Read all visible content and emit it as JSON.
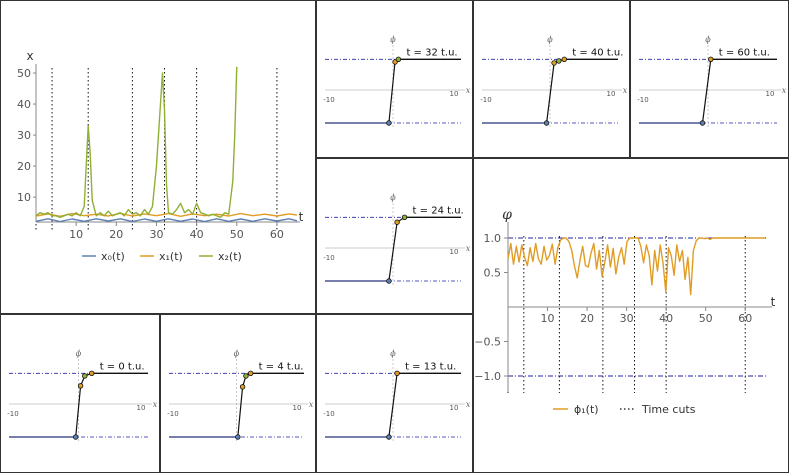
{
  "chart_data": [
    {
      "type": "line",
      "panel": "position-traces",
      "ylabel": "x",
      "xlabel": "t",
      "xlim": [
        0,
        65
      ],
      "ylim": [
        0,
        55
      ],
      "xticks": [
        "10",
        "20",
        "30",
        "40",
        "50",
        "60"
      ],
      "yticks": [
        "10",
        "20",
        "30",
        "40",
        "50"
      ],
      "time_cuts": [
        0,
        4,
        13,
        24,
        32,
        40,
        60
      ],
      "legend_position": "bottom",
      "series": [
        {
          "name": "x₀(t)",
          "color": "#5e81b5",
          "x": [
            0,
            3,
            6,
            9,
            12,
            15,
            18,
            21,
            24,
            27,
            30,
            33,
            36,
            39,
            42,
            45,
            48,
            51,
            54,
            57,
            60,
            63,
            65
          ],
          "y": [
            0.5,
            -0.5,
            0.6,
            -0.4,
            0.5,
            -0.5,
            0.4,
            -0.5,
            0.6,
            -0.4,
            0.5,
            -0.5,
            0.5,
            -0.4,
            0.6,
            -0.5,
            0.5,
            -0.4,
            0.5,
            -0.5,
            0.4,
            -0.5,
            0.3
          ]
        },
        {
          "name": "x₁(t)",
          "color": "#e19c24",
          "x": [
            0,
            3,
            6,
            9,
            12,
            15,
            18,
            21,
            24,
            27,
            30,
            33,
            36,
            39,
            42,
            45,
            48,
            51,
            54,
            57,
            60,
            63,
            65
          ],
          "y": [
            2.5,
            3.2,
            2.4,
            3.3,
            2.6,
            3.1,
            2.5,
            3.4,
            2.5,
            3.2,
            2.6,
            3.3,
            2.4,
            3.2,
            2.6,
            3.1,
            2.5,
            3.3,
            2.6,
            3.1,
            2.5,
            3.2,
            2.8
          ]
        },
        {
          "name": "x₂(t)",
          "color": "#8fb032",
          "x": [
            0,
            1,
            2,
            3,
            4,
            5,
            6,
            7,
            8,
            9,
            10,
            11,
            12,
            12.5,
            13,
            13.5,
            14,
            15,
            16,
            17,
            18,
            19,
            20,
            21,
            22,
            23,
            24,
            25,
            26,
            27,
            28,
            29,
            30,
            31,
            31.5,
            32,
            32.5,
            33,
            34,
            35,
            36,
            37,
            38,
            39,
            40,
            41,
            42,
            43,
            44,
            45,
            46,
            47,
            48,
            49,
            49.5,
            50
          ],
          "y": [
            4,
            5,
            4.5,
            5,
            4,
            4,
            3.5,
            4,
            4.5,
            4,
            5,
            4,
            7,
            20,
            33,
            24,
            9,
            4,
            5,
            4,
            5.5,
            4,
            4.5,
            5,
            4,
            6,
            4.5,
            5,
            4,
            6,
            4.5,
            7,
            20,
            40,
            50,
            38,
            14,
            5,
            4.5,
            6,
            8,
            5,
            6,
            4.5,
            8,
            5,
            4.5,
            4,
            4.5,
            4,
            3.5,
            5,
            4.5,
            15,
            30,
            52
          ]
        }
      ]
    },
    {
      "type": "line",
      "panel": "phi-trace",
      "ylabel": "φ",
      "xlabel": "t",
      "xlim": [
        0,
        65
      ],
      "ylim": [
        -1.1,
        1.1
      ],
      "xticks": [
        "10",
        "20",
        "30",
        "40",
        "50",
        "60"
      ],
      "yticks": [
        "1.0",
        "0.5",
        "−0.5",
        "−1.0"
      ],
      "reference_lines": [
        1.0,
        -1.0
      ],
      "time_cuts": [
        0,
        4,
        13,
        24,
        32,
        40,
        60
      ],
      "legend_position": "bottom",
      "legend": {
        "series": "ϕ₁(t)",
        "cuts": "Time cuts"
      },
      "series": [
        {
          "name": "ϕ₁(t)",
          "color": "#e19c24",
          "x": [
            0,
            0.7,
            1.4,
            2.1,
            2.8,
            3.5,
            4.2,
            4.9,
            5.6,
            6.3,
            7,
            7.7,
            8.4,
            9.1,
            9.8,
            10.5,
            11.2,
            11.9,
            12.6,
            13.3,
            14,
            14.7,
            15.4,
            16.1,
            16.8,
            17.5,
            18.2,
            18.9,
            19.6,
            20.3,
            21,
            21.7,
            22.4,
            23.1,
            23.8,
            24.5,
            25.2,
            25.9,
            26.6,
            27.3,
            28,
            28.7,
            29.4,
            30.1,
            30.8,
            31.5,
            32.2,
            32.9,
            33.6,
            34.3,
            35,
            35.7,
            36.4,
            37.1,
            37.8,
            38.5,
            39.2,
            39.9,
            40.6,
            41.3,
            42,
            42.7,
            43.4,
            44.1,
            44.8,
            45.5,
            46.2,
            46.9,
            47.6,
            48.3,
            49,
            49.7,
            50.4,
            51.1,
            51.8,
            52.5,
            53.2,
            53.9,
            54.6,
            55.3,
            56,
            56.7,
            57.4,
            58.1,
            58.8,
            59.5,
            60.2,
            60.9,
            61.6,
            62.3,
            63,
            63.7,
            64.4,
            65
          ],
          "y": [
            0.7,
            0.92,
            0.62,
            0.88,
            0.65,
            0.9,
            0.72,
            0.6,
            0.86,
            0.66,
            0.92,
            0.7,
            0.62,
            0.88,
            0.68,
            0.75,
            0.91,
            0.62,
            0.86,
            0.97,
            1.0,
            1.0,
            0.95,
            0.82,
            0.6,
            0.42,
            0.68,
            0.88,
            0.6,
            0.58,
            0.78,
            0.92,
            0.55,
            0.82,
            0.44,
            0.66,
            0.9,
            0.58,
            0.85,
            0.48,
            0.72,
            0.86,
            0.62,
            0.95,
            1.0,
            1.0,
            1.0,
            1.0,
            0.88,
            0.64,
            0.9,
            0.74,
            0.32,
            0.82,
            0.52,
            0.9,
            0.64,
            0.22,
            0.86,
            0.74,
            0.46,
            0.9,
            0.66,
            0.82,
            0.4,
            0.72,
            0.18,
            0.82,
            0.96,
            1.0,
            1.0,
            0.99,
            1.0,
            0.98,
            1.0,
            1.0,
            1.0,
            1.0,
            1.0,
            1.0,
            1.0,
            1.0,
            1.0,
            1.0,
            1.0,
            1.0,
            1.0,
            1.0,
            1.0,
            1.0,
            1.0,
            1.0,
            1.0,
            1.0
          ]
        }
      ]
    },
    {
      "type": "line",
      "panel": "snapshots",
      "xlabel": "x",
      "ylabel": "ϕ",
      "xlim": [
        -10,
        10
      ],
      "ylim": [
        -1.1,
        1.1
      ],
      "tick_left": "-10",
      "tick_right": "10",
      "snapshots": [
        {
          "label": "t = 0 t.u.",
          "points": [
            [
              -10,
              -1
            ],
            [
              -0.4,
              -1
            ],
            [
              0.3,
              0.55
            ],
            [
              0.9,
              0.85
            ],
            [
              1.9,
              0.93
            ],
            [
              10,
              0.93
            ]
          ]
        },
        {
          "label": "t = 4 t.u.",
          "points": [
            [
              -10,
              -1
            ],
            [
              0.2,
              -1
            ],
            [
              0.9,
              0.52
            ],
            [
              1.4,
              0.85
            ],
            [
              2.1,
              0.93
            ],
            [
              10,
              0.93
            ]
          ]
        },
        {
          "label": "t = 13 t.u.",
          "points": [
            [
              -10,
              -1
            ],
            [
              -0.6,
              -1
            ],
            [
              0.6,
              0.93
            ],
            [
              10,
              0.93
            ]
          ]
        },
        {
          "label": "t = 24 t.u.",
          "points": [
            [
              -10,
              -1
            ],
            [
              -0.6,
              -1
            ],
            [
              0.6,
              0.78
            ],
            [
              1.7,
              0.93
            ],
            [
              10,
              0.93
            ]
          ]
        },
        {
          "label": "t = 32 t.u.",
          "points": [
            [
              -10,
              -1
            ],
            [
              -0.6,
              -1
            ],
            [
              0.3,
              0.85
            ],
            [
              0.8,
              0.93
            ],
            [
              10,
              0.93
            ]
          ]
        },
        {
          "label": "t = 40 t.u.",
          "points": [
            [
              -10,
              -1
            ],
            [
              -0.5,
              -1
            ],
            [
              0.6,
              0.82
            ],
            [
              1.3,
              0.88
            ],
            [
              2.1,
              0.93
            ],
            [
              10,
              0.93
            ]
          ]
        },
        {
          "label": "t = 60 t.u.",
          "points": [
            [
              -10,
              -1
            ],
            [
              -0.8,
              -1
            ],
            [
              0.4,
              0.93
            ],
            [
              10,
              0.93
            ]
          ]
        }
      ]
    }
  ]
}
